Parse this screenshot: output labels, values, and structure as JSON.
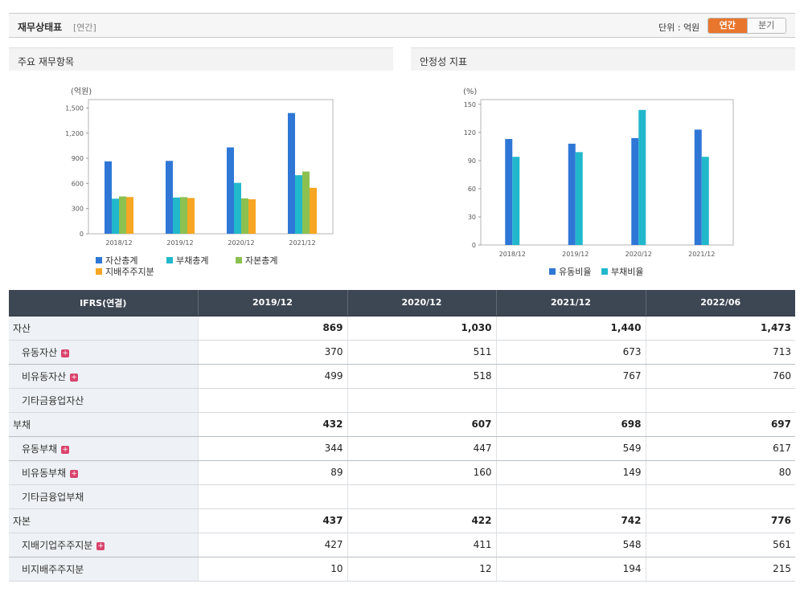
{
  "header": {
    "title": "재무상태표",
    "subtitle": "[연간]",
    "unit_label": "단위 : 억원",
    "toggle_annual": "연간",
    "toggle_quarter": "분기",
    "accent_color": "#e8762d"
  },
  "panels": {
    "left_title": "주요 재무항목",
    "right_title": "안정성 지표"
  },
  "chart_data": [
    {
      "type": "bar",
      "ylabel": "(억원)",
      "ylim": [
        0,
        1600
      ],
      "yticks": [
        "0",
        "300",
        "600",
        "900",
        "1,200",
        "1,500"
      ],
      "ytick_values": [
        0,
        300,
        600,
        900,
        1200,
        1500
      ],
      "categories": [
        "2018/12",
        "2019/12",
        "2020/12",
        "2021/12"
      ],
      "series": [
        {
          "name": "자산총계",
          "color": "#2f77d6",
          "values": [
            863,
            869,
            1030,
            1440
          ]
        },
        {
          "name": "부채총계",
          "color": "#22b8cc",
          "values": [
            418,
            432,
            607,
            698
          ]
        },
        {
          "name": "자본총계",
          "color": "#8cc152",
          "values": [
            445,
            437,
            422,
            742
          ]
        },
        {
          "name": "지배주주지분",
          "color": "#f6a623",
          "values": [
            438,
            427,
            411,
            548
          ]
        }
      ],
      "legend_position": "bottom",
      "grid": false
    },
    {
      "type": "bar",
      "ylabel": "(%)",
      "ylim": [
        0,
        155
      ],
      "yticks": [
        "0",
        "30",
        "60",
        "90",
        "120",
        "150"
      ],
      "ytick_values": [
        0,
        30,
        60,
        90,
        120,
        150
      ],
      "categories": [
        "2018/12",
        "2019/12",
        "2020/12",
        "2021/12"
      ],
      "series": [
        {
          "name": "유동비율",
          "color": "#2f77d6",
          "values": [
            113,
            108,
            114,
            123
          ]
        },
        {
          "name": "부채비율",
          "color": "#22b8cc",
          "values": [
            94,
            99,
            144,
            94
          ]
        }
      ],
      "legend_position": "bottom",
      "grid": false
    }
  ],
  "table": {
    "columns": [
      "IFRS(연결)",
      "2019/12",
      "2020/12",
      "2021/12",
      "2022/06"
    ],
    "rows": [
      {
        "label": "자산",
        "level": 0,
        "bold": true,
        "expand": false,
        "values": [
          "869",
          "1,030",
          "1,440",
          "1,473"
        ]
      },
      {
        "label": "유동자산",
        "level": 1,
        "bold": false,
        "expand": true,
        "values": [
          "370",
          "511",
          "673",
          "713"
        ]
      },
      {
        "label": "비유동자산",
        "level": 1,
        "bold": false,
        "expand": true,
        "values": [
          "499",
          "518",
          "767",
          "760"
        ]
      },
      {
        "label": "기타금융업자산",
        "level": 1,
        "bold": false,
        "expand": false,
        "values": [
          "",
          "",
          "",
          ""
        ]
      },
      {
        "label": "부채",
        "level": 0,
        "bold": true,
        "expand": false,
        "values": [
          "432",
          "607",
          "698",
          "697"
        ]
      },
      {
        "label": "유동부채",
        "level": 1,
        "bold": false,
        "expand": true,
        "values": [
          "344",
          "447",
          "549",
          "617"
        ]
      },
      {
        "label": "비유동부채",
        "level": 1,
        "bold": false,
        "expand": true,
        "values": [
          "89",
          "160",
          "149",
          "80"
        ]
      },
      {
        "label": "기타금융업부채",
        "level": 1,
        "bold": false,
        "expand": false,
        "values": [
          "",
          "",
          "",
          ""
        ]
      },
      {
        "label": "자본",
        "level": 0,
        "bold": true,
        "expand": false,
        "values": [
          "437",
          "422",
          "742",
          "776"
        ]
      },
      {
        "label": "지배기업주주지분",
        "level": 1,
        "bold": false,
        "expand": true,
        "values": [
          "427",
          "411",
          "548",
          "561"
        ]
      },
      {
        "label": "비지배주주지분",
        "level": 1,
        "bold": false,
        "expand": false,
        "values": [
          "10",
          "12",
          "194",
          "215"
        ]
      }
    ]
  }
}
